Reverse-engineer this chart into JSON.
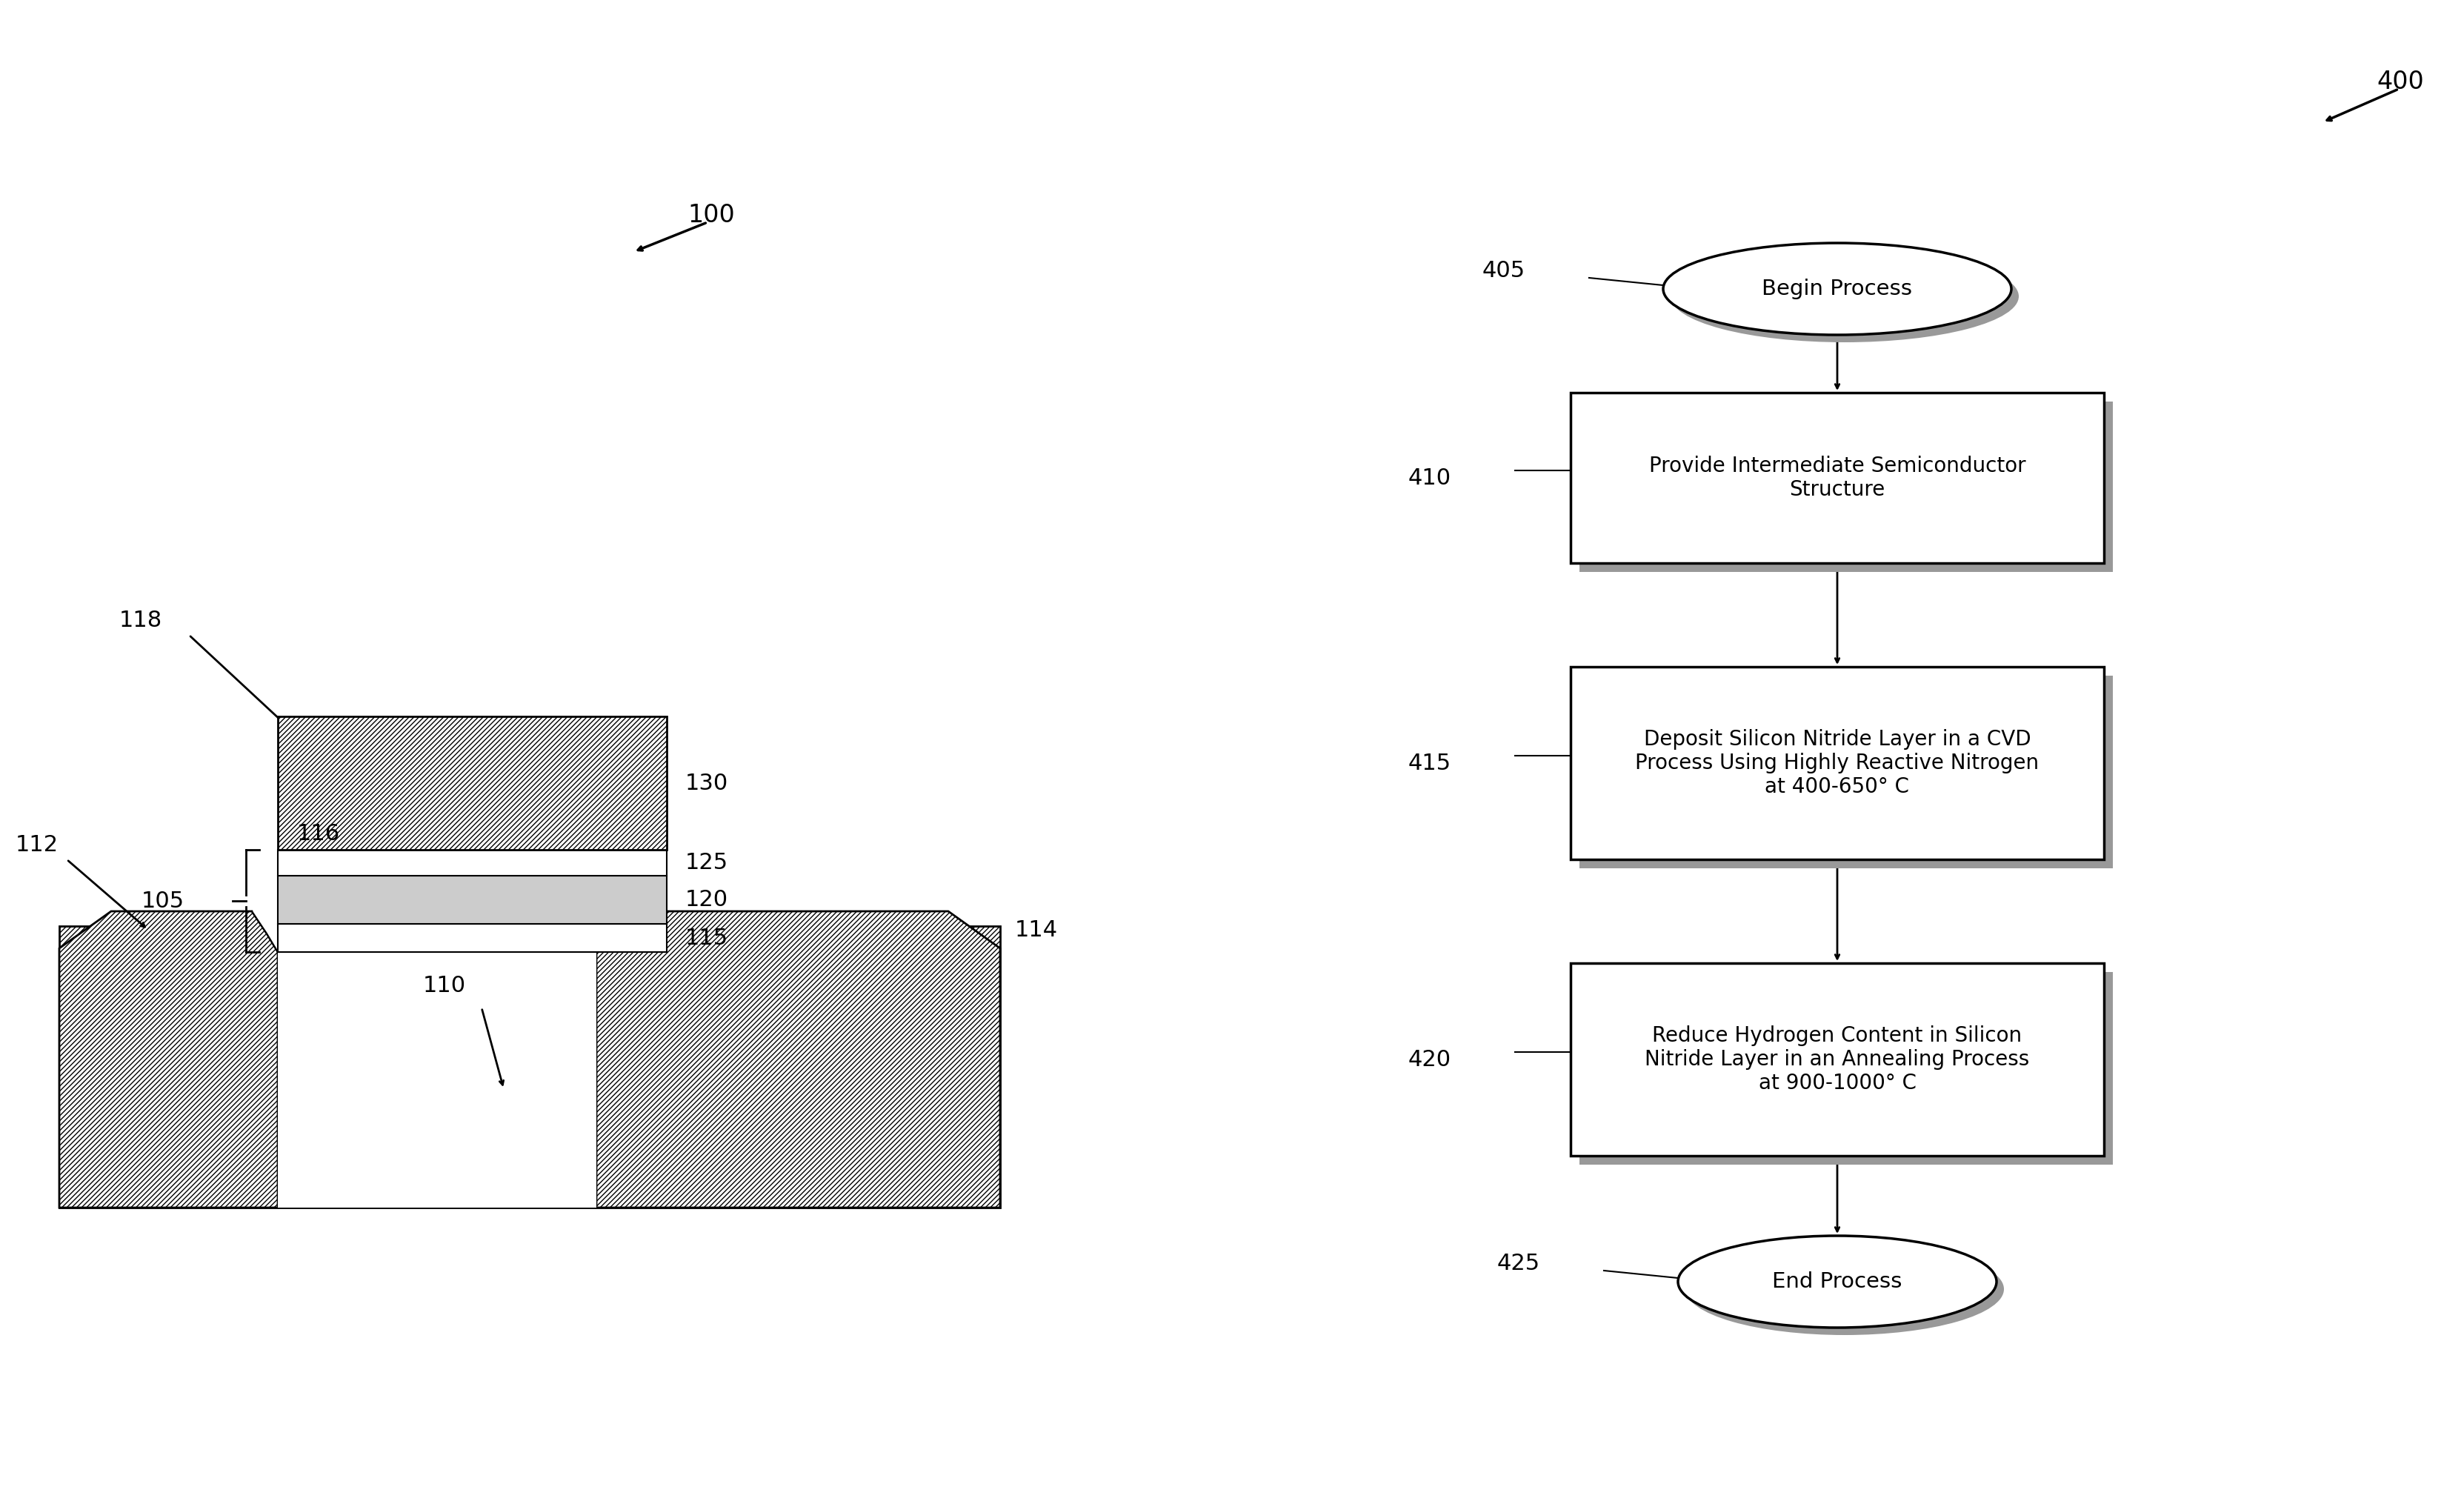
{
  "bg_color": "#ffffff",
  "fig_width": 33.26,
  "fig_height": 20.26,
  "label_100": "100",
  "label_400": "400",
  "label_105": "105",
  "label_110": "110",
  "label_112": "112",
  "label_114": "114",
  "label_115": "115",
  "label_116": "116",
  "label_118": "118",
  "label_120": "120",
  "label_125": "125",
  "label_130": "130",
  "label_405": "405",
  "label_410": "410",
  "label_415": "415",
  "label_420": "420",
  "label_425": "425",
  "box_410_text": "Provide Intermediate Semiconductor\nStructure",
  "box_415_text": "Deposit Silicon Nitride Layer in a CVD\nProcess Using Highly Reactive Nitrogen\nat 400-650° C",
  "box_420_text": "Reduce Hydrogen Content in Silicon\nNitride Layer in an Annealing Process\nat 900-1000° C",
  "begin_text": "Begin Process",
  "end_text": "End Process"
}
